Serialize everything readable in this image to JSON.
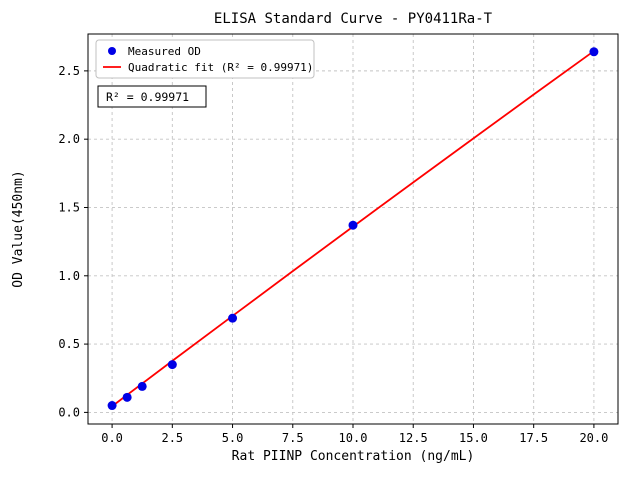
{
  "figure": {
    "background": "#ffffff"
  },
  "chart_data": {
    "type": "scatter",
    "title": "ELISA Standard Curve - PY0411Ra-T",
    "xlabel": "Rat PIINP Concentration (ng/mL)",
    "ylabel": "OD Value(450nm)",
    "xlim": [
      -1,
      21
    ],
    "ylim": [
      -0.085,
      2.77
    ],
    "xticks": [
      0,
      2.5,
      5,
      7.5,
      10,
      12.5,
      15,
      17.5,
      20
    ],
    "xtick_labels": [
      "0.0",
      "2.5",
      "5.0",
      "7.5",
      "10.0",
      "12.5",
      "15.0",
      "17.5",
      "20.0"
    ],
    "yticks": [
      0,
      0.5,
      1,
      1.5,
      2,
      2.5
    ],
    "ytick_labels": [
      "0.0",
      "0.5",
      "1.0",
      "1.5",
      "2.0",
      "2.5"
    ],
    "grid": true,
    "grid_color": "#c3c3c3",
    "grid_style": "dashed",
    "legend_position": "upper-left",
    "series": [
      {
        "name": "Measured OD",
        "type": "scatter",
        "marker": "circle",
        "color": "#0000e6",
        "x": [
          0,
          0.625,
          1.25,
          2.5,
          5,
          10,
          20
        ],
        "y": [
          0.05,
          0.11,
          0.19,
          0.35,
          0.69,
          1.37,
          2.64
        ]
      },
      {
        "name": "Quadratic fit (R² = 0.99971)",
        "type": "line",
        "color": "#ff0000",
        "x": [
          0,
          2.5,
          5,
          7.5,
          10,
          12.5,
          15,
          17.5,
          20
        ],
        "y": [
          0.045,
          0.377,
          0.706,
          1.034,
          1.36,
          1.684,
          2.006,
          2.327,
          2.645
        ]
      }
    ],
    "annotation": {
      "text": "R² = 0.99971"
    },
    "r_squared": "0.99971"
  }
}
